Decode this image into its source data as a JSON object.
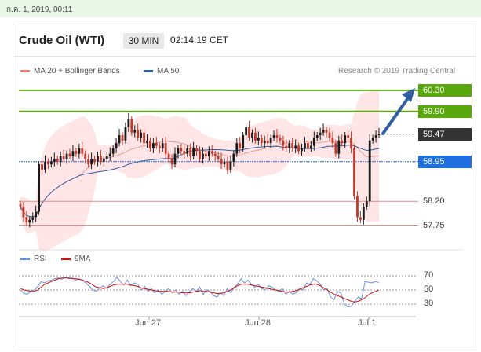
{
  "header": {
    "datetime": "ก.ค. 1, 2019, 00:11"
  },
  "chart": {
    "title": "Crude Oil (WTI)",
    "timeframe": "30 MIN",
    "time": "02:14:19 CET",
    "credit": "Research © 2019 Trading Central"
  },
  "legend": [
    {
      "label": "MA 20 + Bollinger Bands",
      "color": "#f08080"
    },
    {
      "label": "MA 50",
      "color": "#2f5fa8"
    }
  ],
  "colors": {
    "green": "#58a80e",
    "blue": "#1f6fe0",
    "red_level": "#f08888",
    "dark": "#333333",
    "band": "#ffdcdc",
    "candle_up": "#1a1a1a",
    "candle_down": "#c0392b",
    "arrow": "#2f5fa0",
    "rsi": "#6b8fd9",
    "ma9": "#cc1111"
  },
  "chart_data": {
    "type": "candlestick",
    "ylim": [
      57.55,
      60.55
    ],
    "levels": [
      {
        "value": 60.3,
        "label": "60.30",
        "style": "green"
      },
      {
        "value": 59.9,
        "label": "59.90",
        "style": "green"
      },
      {
        "value": 59.47,
        "label": "59.47",
        "style": "dark"
      },
      {
        "value": 58.95,
        "label": "58.95",
        "style": "blue"
      },
      {
        "value": 58.2,
        "label": "58.20",
        "style": "red"
      },
      {
        "value": 57.75,
        "label": "57.75",
        "style": "red"
      }
    ],
    "x_ticks": [
      "Jun 27",
      "Jun 28",
      "Jul 1"
    ],
    "close": [
      58.1,
      57.9,
      57.8,
      57.85,
      57.9,
      58.0,
      58.9,
      58.8,
      58.95,
      58.9,
      58.95,
      59.0,
      58.95,
      59.05,
      59.0,
      59.1,
      59.05,
      59.15,
      59.1,
      59.2,
      59.1,
      59.0,
      58.9,
      59.0,
      58.95,
      59.05,
      58.95,
      59.0,
      59.05,
      59.1,
      59.2,
      59.3,
      59.45,
      59.35,
      59.6,
      59.75,
      59.5,
      59.55,
      59.4,
      59.5,
      59.3,
      59.35,
      59.2,
      59.3,
      59.25,
      59.2,
      59.3,
      59.1,
      59.0,
      58.9,
      59.1,
      59.2,
      59.15,
      59.1,
      59.2,
      59.05,
      59.2,
      59.15,
      59.0,
      59.1,
      59.05,
      59.15,
      59.1,
      59.05,
      59.0,
      58.9,
      58.95,
      58.8,
      58.95,
      59.1,
      59.3,
      59.2,
      59.45,
      59.6,
      59.4,
      59.5,
      59.35,
      59.4,
      59.3,
      59.35,
      59.3,
      59.4,
      59.45,
      59.4,
      59.35,
      59.25,
      59.2,
      59.3,
      59.2,
      59.25,
      59.15,
      59.2,
      59.3,
      59.2,
      59.25,
      59.4,
      59.45,
      59.5,
      59.55,
      59.5,
      59.4,
      59.3,
      59.1,
      59.35,
      59.3,
      59.45,
      59.4,
      59.2,
      58.3,
      57.9,
      57.85,
      58.1,
      58.2,
      59.35,
      59.4,
      59.45,
      59.47
    ],
    "rsi": {
      "levels": [
        70,
        50,
        30
      ],
      "ylim": [
        20,
        80
      ],
      "values": [
        50,
        45,
        44,
        48,
        50,
        55,
        62,
        60,
        63,
        64,
        66,
        67,
        65,
        68,
        66,
        67,
        64,
        66,
        63,
        60,
        55,
        50,
        48,
        53,
        56,
        52,
        58,
        62,
        68,
        62,
        57,
        64,
        56,
        60,
        58,
        50,
        55,
        48,
        52,
        46,
        50,
        44,
        48,
        52,
        46,
        50,
        44,
        48,
        42,
        47,
        52,
        48,
        54,
        44,
        50,
        48,
        42,
        40,
        47,
        42,
        52,
        46,
        54,
        58,
        66,
        60,
        64,
        58,
        54,
        58,
        52,
        50,
        56,
        54,
        50,
        48,
        52,
        44,
        48,
        44,
        46,
        52,
        50,
        60,
        58,
        66,
        63,
        58,
        50,
        52,
        40,
        36,
        48,
        46,
        30,
        26,
        27,
        34,
        40,
        38,
        62,
        61,
        60,
        62,
        60
      ],
      "ma9": [
        52,
        50,
        49,
        48,
        48,
        50,
        54,
        58,
        60,
        62,
        64,
        66,
        67,
        67,
        67,
        66,
        66,
        65,
        64,
        62,
        60,
        57,
        54,
        53,
        52,
        53,
        55,
        57,
        58,
        58,
        58,
        58,
        57,
        56,
        55,
        53,
        52,
        51,
        50,
        49,
        48,
        48,
        48,
        48,
        47,
        47,
        47,
        46,
        46,
        46,
        47,
        48,
        49,
        48,
        48,
        47,
        46,
        45,
        45,
        46,
        48,
        50,
        53,
        56,
        58,
        58,
        58,
        57,
        56,
        55,
        54,
        53,
        52,
        51,
        50,
        49,
        48,
        47,
        47,
        48,
        49,
        51,
        53,
        55,
        57,
        58,
        58,
        56,
        53,
        50,
        47,
        44,
        42,
        40,
        38,
        36,
        34,
        33,
        34,
        36,
        39,
        43,
        46,
        48,
        50
      ]
    }
  }
}
